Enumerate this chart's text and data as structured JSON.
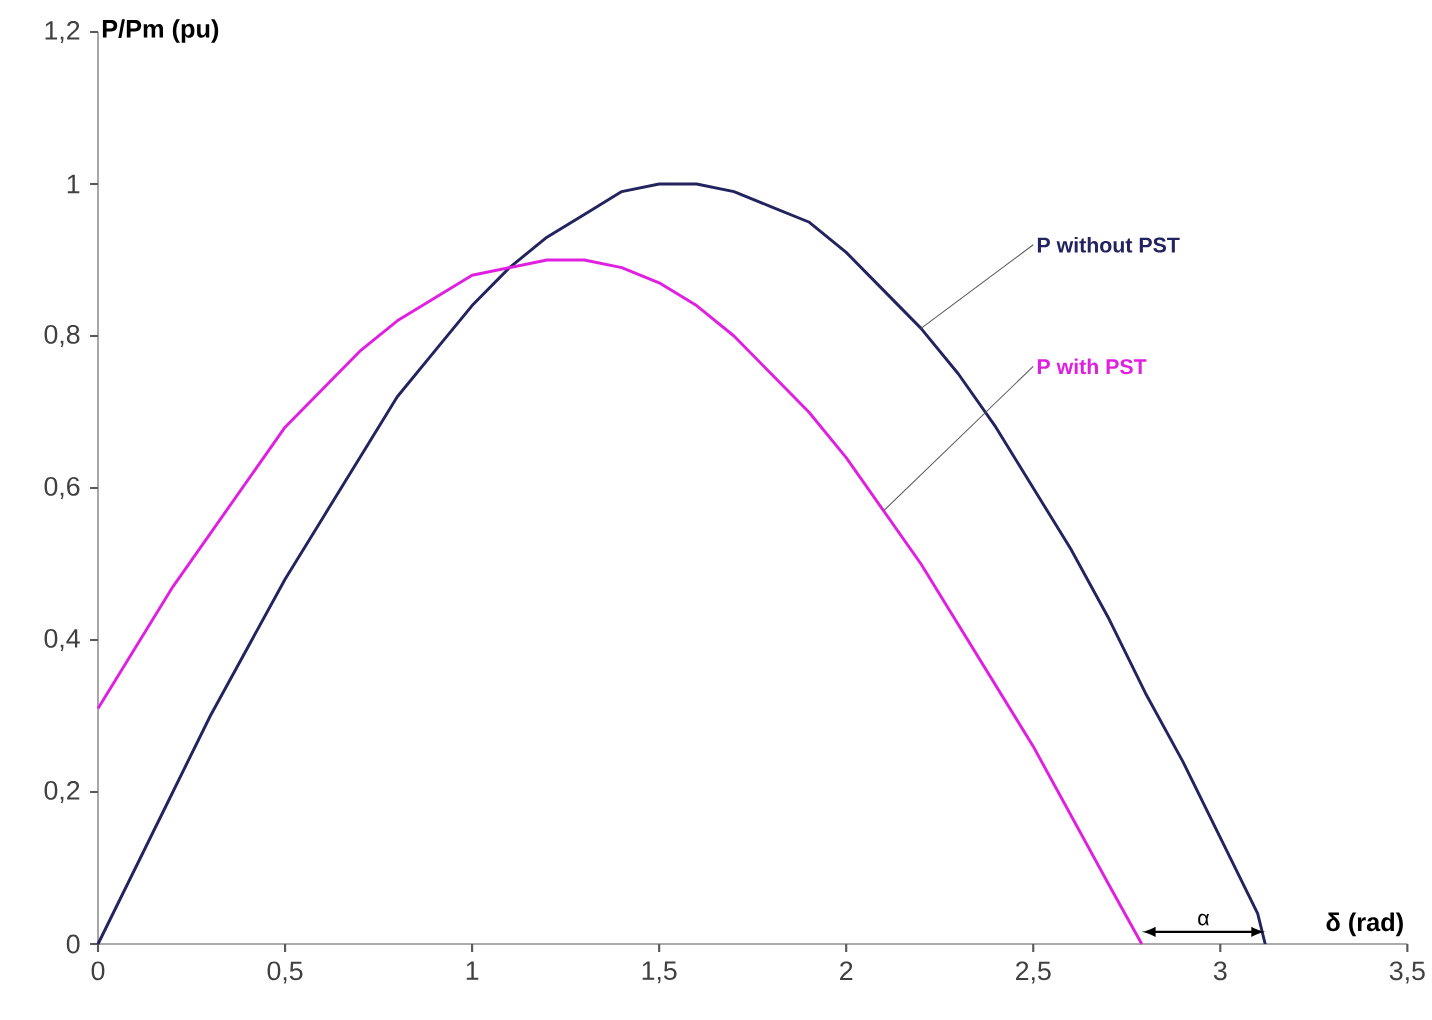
{
  "chart_data": {
    "type": "line",
    "xlabel": "δ (rad)",
    "ylabel": "P/Pm (pu)",
    "xlim": [
      0,
      3.5
    ],
    "ylim": [
      0,
      1.2
    ],
    "xticks": [
      0,
      {
        "value": 0.5,
        "label": "0,5"
      },
      1,
      {
        "value": 1.5,
        "label": "1,5"
      },
      2,
      {
        "value": 2.5,
        "label": "2,5"
      },
      3,
      {
        "value": 3.5,
        "label": "3,5"
      }
    ],
    "yticks": [
      0,
      {
        "value": 0.2,
        "label": "0,2"
      },
      {
        "value": 0.4,
        "label": "0,4"
      },
      {
        "value": 0.6,
        "label": "0,6"
      },
      {
        "value": 0.8,
        "label": "0,8"
      },
      1,
      {
        "value": 1.2,
        "label": "1,2"
      }
    ],
    "grid": false,
    "legend": false,
    "series": [
      {
        "name": "P without PST",
        "color": "#23235f",
        "x": [
          0,
          0.1,
          0.2,
          0.3,
          0.4,
          0.5,
          0.6,
          0.7,
          0.8,
          0.9,
          1.0,
          1.1,
          1.2,
          1.3,
          1.4,
          1.5,
          1.6,
          1.7,
          1.8,
          1.9,
          2.0,
          2.1,
          2.2,
          2.3,
          2.4,
          2.5,
          2.6,
          2.7,
          2.8,
          2.9,
          3.0,
          3.1,
          3.12
        ],
        "values": [
          0,
          0.1,
          0.2,
          0.3,
          0.39,
          0.48,
          0.56,
          0.64,
          0.72,
          0.78,
          0.84,
          0.89,
          0.93,
          0.96,
          0.99,
          1.0,
          1.0,
          0.99,
          0.97,
          0.95,
          0.91,
          0.86,
          0.81,
          0.75,
          0.68,
          0.6,
          0.52,
          0.43,
          0.33,
          0.24,
          0.14,
          0.04,
          0
        ]
      },
      {
        "name": "P with PST",
        "color": "#e020e0",
        "x": [
          0,
          0.1,
          0.2,
          0.3,
          0.4,
          0.5,
          0.6,
          0.7,
          0.8,
          0.9,
          1.0,
          1.1,
          1.2,
          1.3,
          1.4,
          1.5,
          1.6,
          1.7,
          1.8,
          1.9,
          2.0,
          2.1,
          2.2,
          2.3,
          2.4,
          2.5,
          2.6,
          2.7,
          2.79
        ],
        "values": [
          0.31,
          0.39,
          0.47,
          0.54,
          0.61,
          0.68,
          0.73,
          0.78,
          0.82,
          0.85,
          0.88,
          0.89,
          0.9,
          0.9,
          0.89,
          0.87,
          0.84,
          0.8,
          0.75,
          0.7,
          0.64,
          0.57,
          0.5,
          0.42,
          0.34,
          0.26,
          0.17,
          0.08,
          0
        ]
      }
    ],
    "annotations": [
      "α"
    ]
  }
}
